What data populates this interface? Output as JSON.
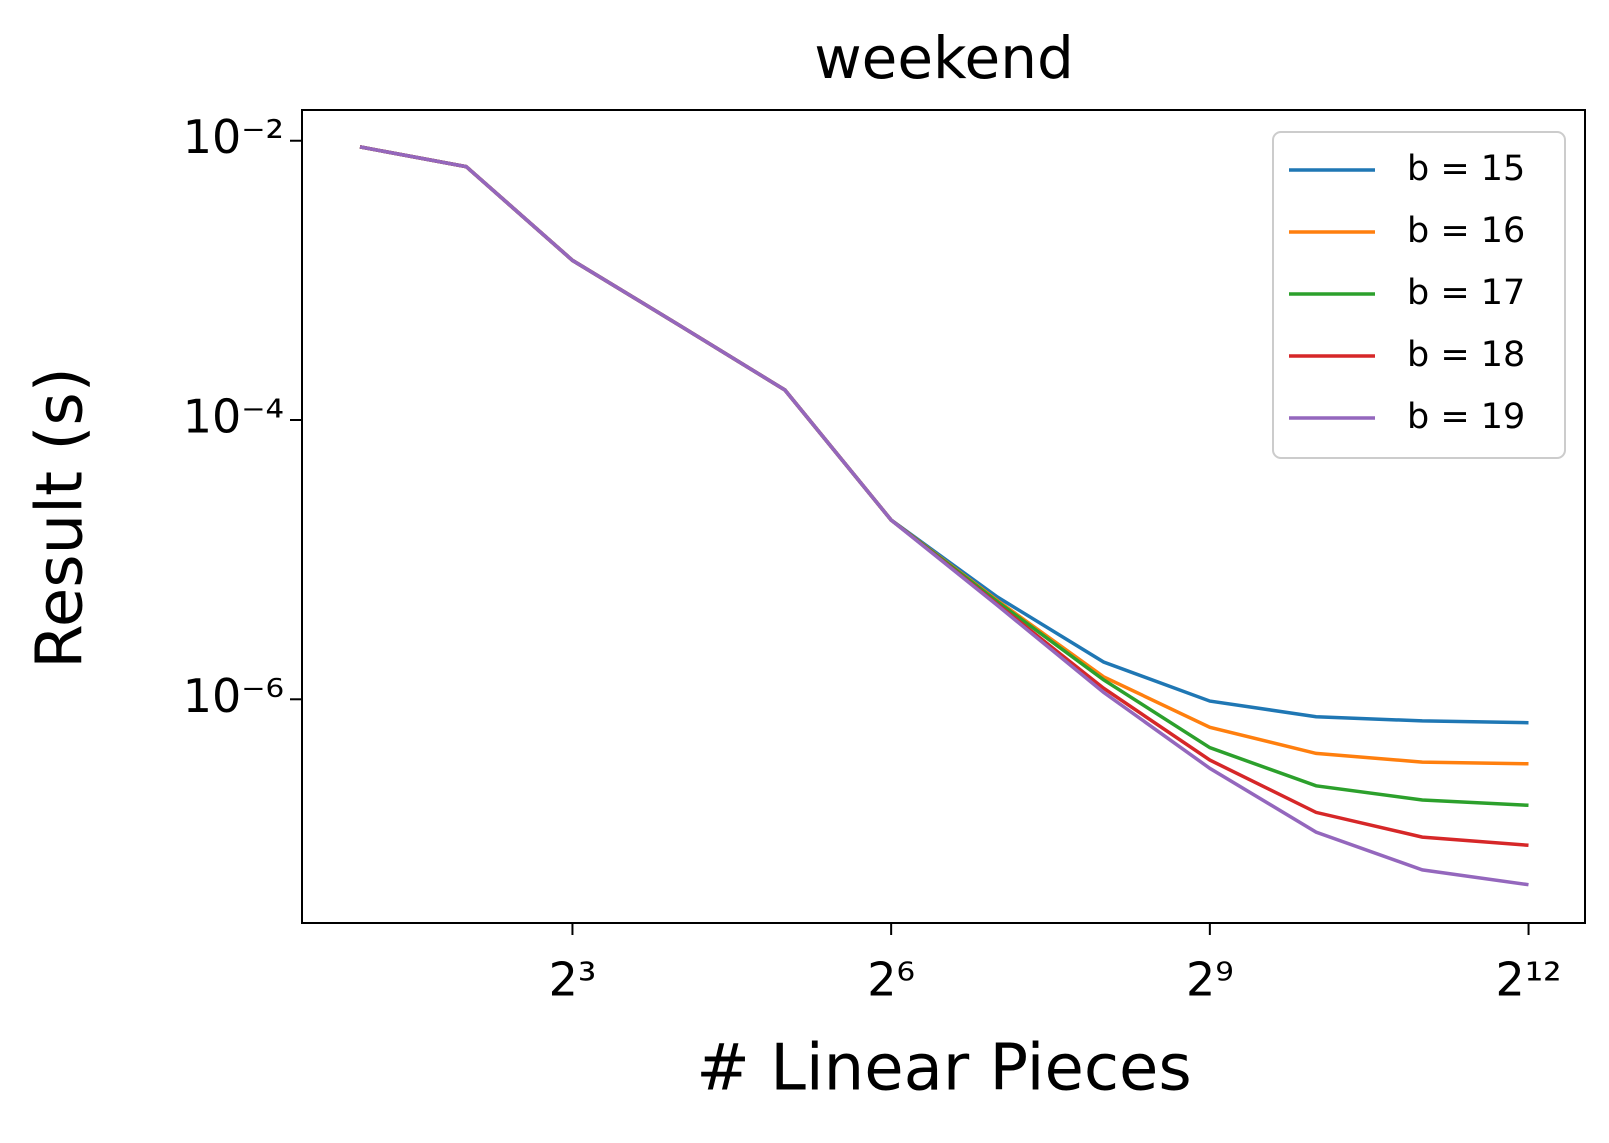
{
  "chart_data": {
    "type": "line",
    "title": "weekend",
    "x_label": "# Linear Pieces",
    "y_label": "Result (s)",
    "x_log": true,
    "y_log": true,
    "x": [
      2,
      4,
      8,
      16,
      32,
      64,
      128,
      256,
      512,
      1024,
      2048,
      4096
    ],
    "xlim": [
      1.37,
      5920
    ],
    "ylim": [
      2.5e-08,
      0.0166
    ],
    "xticks": [
      {
        "value": 8,
        "label": "2³"
      },
      {
        "value": 64,
        "label": "2⁶"
      },
      {
        "value": 512,
        "label": "2⁹"
      },
      {
        "value": 4096,
        "label": "2¹²"
      }
    ],
    "yticks": [
      {
        "value": 0.01,
        "label": "10⁻²"
      },
      {
        "value": 0.0001,
        "label": "10⁻⁴"
      },
      {
        "value": 1e-06,
        "label": "10⁻⁶"
      }
    ],
    "grid": false,
    "legend_position": "upper right",
    "series": [
      {
        "name": "b = 15",
        "color": "#1f77b4",
        "values": [
          0.00903,
          0.00653,
          0.00139,
          0.00048,
          0.000164,
          1.92e-05,
          5.4e-06,
          1.85e-06,
          9.7e-07,
          7.5e-07,
          7e-07,
          6.8e-07
        ]
      },
      {
        "name": "b = 16",
        "color": "#ff7f0e",
        "values": [
          0.00903,
          0.00653,
          0.00139,
          0.00048,
          0.000164,
          1.92e-05,
          5.1e-06,
          1.45e-06,
          6.3e-07,
          4.1e-07,
          3.55e-07,
          3.45e-07
        ]
      },
      {
        "name": "b = 17",
        "color": "#2ca02c",
        "values": [
          0.00903,
          0.00653,
          0.00139,
          0.00048,
          0.000164,
          1.92e-05,
          5e-06,
          1.38e-06,
          4.5e-07,
          2.4e-07,
          1.9e-07,
          1.74e-07
        ]
      },
      {
        "name": "b = 18",
        "color": "#d62728",
        "values": [
          0.00903,
          0.00653,
          0.00139,
          0.00048,
          0.000164,
          1.92e-05,
          4.8e-06,
          1.2e-06,
          3.67e-07,
          1.55e-07,
          1.03e-07,
          9e-08
        ]
      },
      {
        "name": "b = 19",
        "color": "#9467bd",
        "values": [
          0.00903,
          0.00653,
          0.00139,
          0.00048,
          0.000164,
          1.92e-05,
          4.7e-06,
          1.12e-06,
          3.2e-07,
          1.12e-07,
          6e-08,
          4.7e-08
        ]
      }
    ]
  }
}
